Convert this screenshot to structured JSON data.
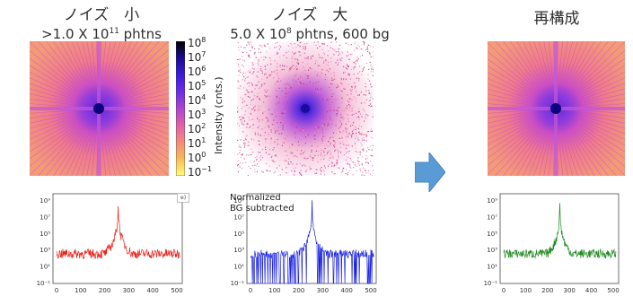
{
  "titles": {
    "low_noise": {
      "main": "ノイズ　小",
      "sub_prefix": ">1.0 X 10",
      "sub_sup": "11",
      "sub_suffix": " phtns"
    },
    "high_noise": {
      "main": "ノイズ　大",
      "sub_prefix": "5.0 X 10",
      "sub_sup": "8",
      "sub_suffix": " phtns, 600 bg"
    },
    "reconstruction": {
      "main": "再構成"
    }
  },
  "colorbar": {
    "axis_label": "Intensity (cnts.)",
    "ticks": [
      {
        "base": "10",
        "exp": "8"
      },
      {
        "base": "10",
        "exp": "7"
      },
      {
        "base": "10",
        "exp": "6"
      },
      {
        "base": "10",
        "exp": "5"
      },
      {
        "base": "10",
        "exp": "4"
      },
      {
        "base": "10",
        "exp": "3"
      },
      {
        "base": "10",
        "exp": "2"
      },
      {
        "base": "10",
        "exp": "1"
      },
      {
        "base": "10",
        "exp": "0"
      },
      {
        "base": "10",
        "exp": "−1"
      }
    ],
    "colors": [
      "#000000",
      "#1a0a8c",
      "#3a1cd8",
      "#6b2ee8",
      "#b143d0",
      "#e060a8",
      "#f58a7c",
      "#f8b85a",
      "#fde24a",
      "#ffff7a"
    ]
  },
  "plots": {
    "left": {
      "color": "#e8221a",
      "legend": "e)"
    },
    "middle": {
      "color": "#1a22e0",
      "note_line1": "Normalized",
      "note_line2": "BG subtracted"
    },
    "right": {
      "color": "#1f8a1f"
    }
  },
  "axis_ticks": {
    "y_left": [
      "10⁹",
      "10⁷",
      "10⁵",
      "10³",
      "10¹",
      "10⁻¹"
    ],
    "y_small": [
      "10⁹",
      "10⁷",
      "10⁵",
      "10³",
      "10¹",
      "10⁻¹"
    ],
    "x": [
      "0",
      "100",
      "200",
      "300",
      "400",
      "500"
    ]
  },
  "arrow": {
    "color": "#5b9bd5",
    "icon": "right-arrow-icon"
  }
}
